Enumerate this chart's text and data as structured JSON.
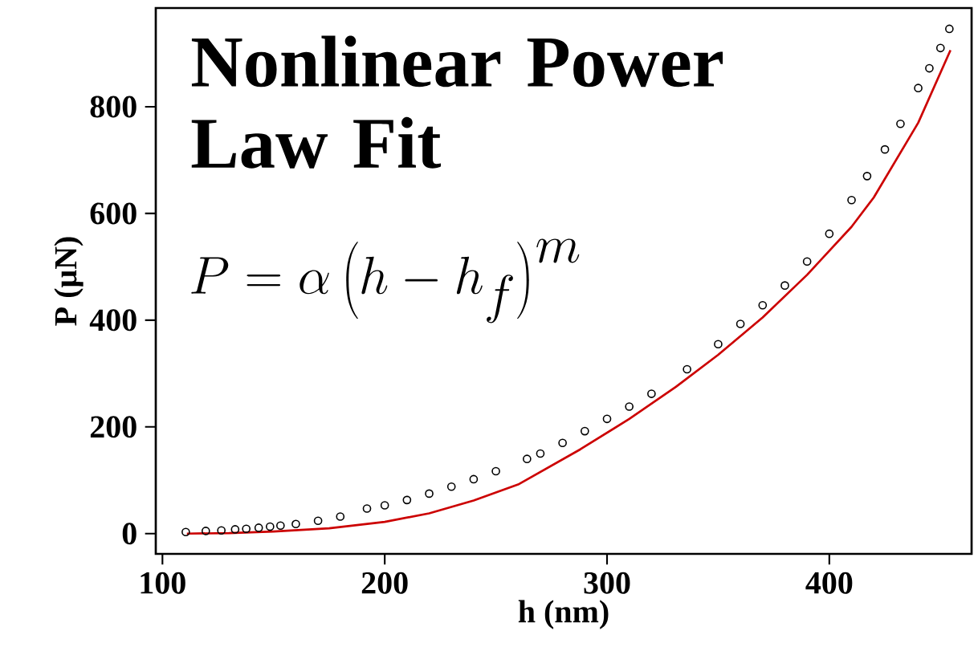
{
  "chart_data": {
    "type": "scatter",
    "title": "Nonlinear Power Law Fit",
    "xlabel": "h (nm)",
    "ylabel": "P (μN)",
    "annotations": [
      "P=\\alpha\\left(h-h_{f}\\right)^{m}"
    ],
    "xlim": [
      97,
      464
    ],
    "ylim": [
      -38,
      985
    ],
    "xticks": [
      100,
      200,
      300,
      400
    ],
    "yticks": [
      0,
      200,
      400,
      600,
      800
    ],
    "grid": false,
    "series": [
      {
        "marker": "circle",
        "color": "#000000",
        "x": [
          110.5,
          119.5,
          126.5,
          132.7,
          137.7,
          143.3,
          148.4,
          153.1,
          160,
          170,
          180,
          192,
          200,
          210,
          220,
          230,
          240,
          250,
          264,
          270,
          280,
          290,
          300,
          310,
          320,
          336,
          350,
          360,
          370,
          380,
          390,
          400,
          410,
          417,
          425,
          432,
          440,
          445,
          450,
          454
        ],
        "values": [
          3,
          5,
          6,
          8,
          9,
          11,
          13,
          15,
          18,
          24,
          32,
          47,
          53,
          63,
          75,
          88,
          102,
          117,
          140,
          150,
          170,
          192,
          215,
          238,
          262,
          308,
          355,
          393,
          428,
          465,
          510,
          562,
          625,
          670,
          720,
          768,
          835,
          872,
          910,
          946
        ]
      },
      {
        "type": "line",
        "color": "#cc0000",
        "marker": "none",
        "x": [
          111,
          130,
          150,
          175,
          200,
          220,
          240,
          260,
          288,
          310,
          331,
          350,
          370,
          390,
          410,
          420,
          440,
          454.5
        ],
        "values": [
          0,
          1,
          4,
          10,
          22,
          38,
          62,
          92,
          158,
          215,
          275,
          335,
          405,
          485,
          575,
          630,
          770,
          906
        ]
      }
    ]
  }
}
